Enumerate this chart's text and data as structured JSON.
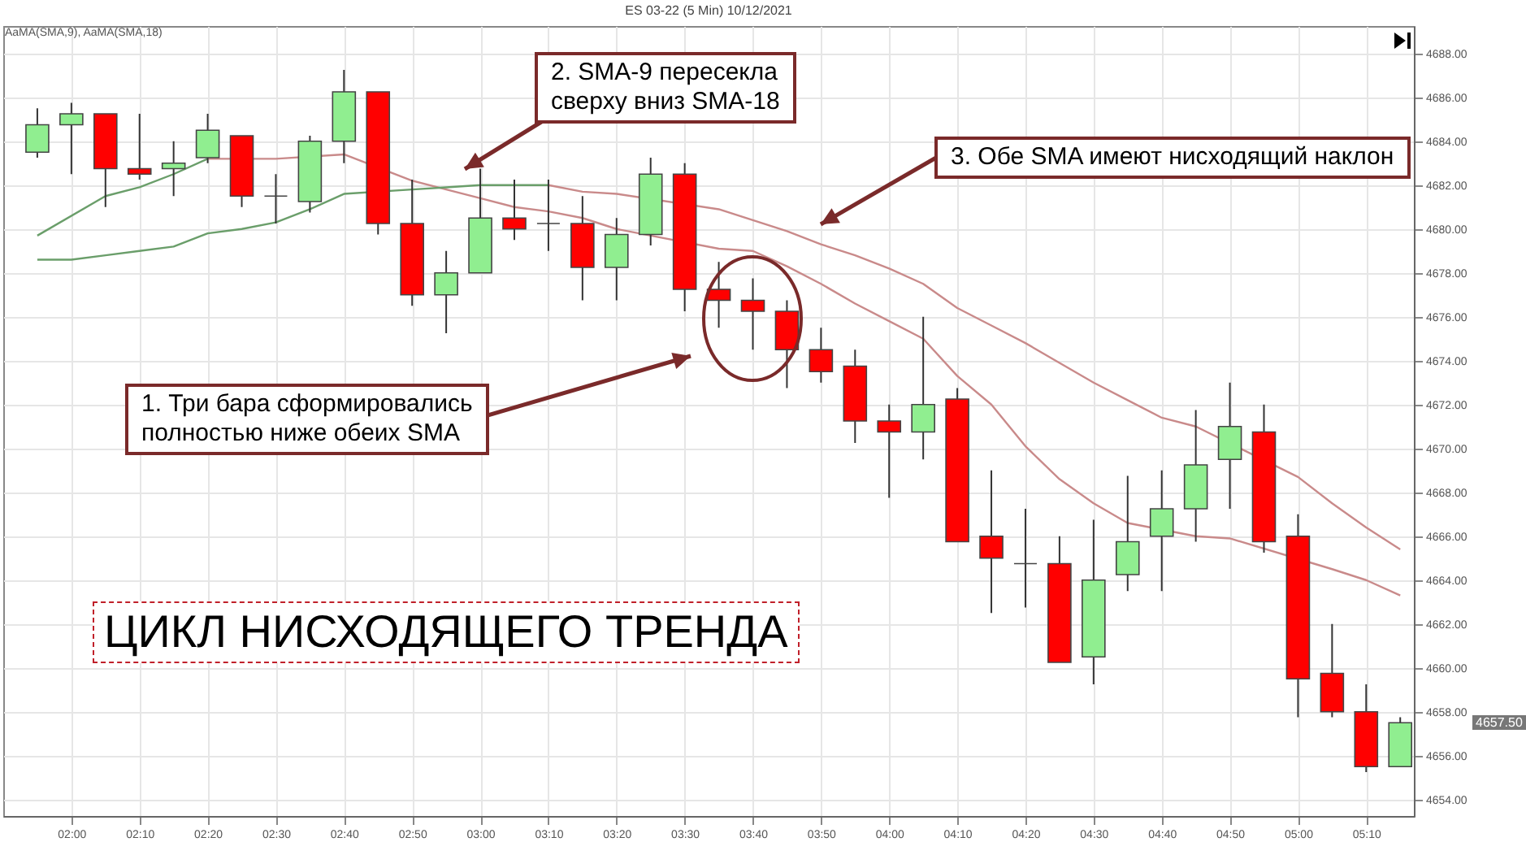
{
  "chart_data": {
    "type": "candlestick",
    "title": "ES 03-22 (5 Min) 10/12/2021",
    "x": [
      "2021-12-10T01:55",
      "2021-12-10T02:00",
      "2021-12-10T02:05",
      "2021-12-10T02:10",
      "2021-12-10T02:15",
      "2021-12-10T02:20",
      "2021-12-10T02:25",
      "2021-12-10T02:30",
      "2021-12-10T02:35",
      "2021-12-10T02:40",
      "2021-12-10T02:45",
      "2021-12-10T02:50",
      "2021-12-10T02:55",
      "2021-12-10T03:00",
      "2021-12-10T03:05",
      "2021-12-10T03:10",
      "2021-12-10T03:15",
      "2021-12-10T03:20",
      "2021-12-10T03:25",
      "2021-12-10T03:30",
      "2021-12-10T03:35",
      "2021-12-10T03:40",
      "2021-12-10T03:45",
      "2021-12-10T03:50",
      "2021-12-10T03:55",
      "2021-12-10T04:00",
      "2021-12-10T04:05",
      "2021-12-10T04:10",
      "2021-12-10T04:15",
      "2021-12-10T04:20",
      "2021-12-10T04:25",
      "2021-12-10T04:30",
      "2021-12-10T04:35",
      "2021-12-10T04:40",
      "2021-12-10T04:45",
      "2021-12-10T04:50",
      "2021-12-10T04:55",
      "2021-12-10T05:00",
      "2021-12-10T05:05",
      "2021-12-10T05:10",
      "2021-12-10T05:15"
    ],
    "ohlc": [
      [
        4683.5,
        4685.5,
        4683.25,
        4684.75
      ],
      [
        4684.75,
        4685.75,
        4682.5,
        4685.25
      ],
      [
        4685.25,
        4685.25,
        4681,
        4682.75
      ],
      [
        4682.75,
        4685.25,
        4682.25,
        4682.5
      ],
      [
        4682.75,
        4684,
        4681.5,
        4683
      ],
      [
        4683.25,
        4685.25,
        4683,
        4684.5
      ],
      [
        4684.25,
        4684.25,
        4681,
        4681.5
      ],
      [
        4681.5,
        4682.5,
        4680.25,
        4681.5
      ],
      [
        4681.25,
        4684.25,
        4680.75,
        4684
      ],
      [
        4684,
        4687.25,
        4683,
        4686.25
      ],
      [
        4686.25,
        4686.25,
        4679.75,
        4680.25
      ],
      [
        4680.25,
        4682.25,
        4676.5,
        4677
      ],
      [
        4677,
        4679,
        4675.25,
        4678
      ],
      [
        4678,
        4682.75,
        4678,
        4680.5
      ],
      [
        4680.5,
        4682.25,
        4679.5,
        4680
      ],
      [
        4680.25,
        4682.25,
        4679,
        4680.25
      ],
      [
        4680.25,
        4681.5,
        4676.75,
        4678.25
      ],
      [
        4678.25,
        4680.5,
        4676.75,
        4679.75
      ],
      [
        4679.75,
        4683.25,
        4679.25,
        4682.5
      ],
      [
        4682.5,
        4683,
        4676.25,
        4677.25
      ],
      [
        4677.25,
        4678.5,
        4675.5,
        4676.75
      ],
      [
        4676.75,
        4677.75,
        4674.5,
        4676.25
      ],
      [
        4676.25,
        4676.75,
        4672.75,
        4674.5
      ],
      [
        4674.5,
        4675.5,
        4673,
        4673.5
      ],
      [
        4673.75,
        4674.5,
        4670.25,
        4671.25
      ],
      [
        4671.25,
        4672,
        4667.75,
        4670.75
      ],
      [
        4670.75,
        4676,
        4669.5,
        4672
      ],
      [
        4672.25,
        4672.75,
        4665.75,
        4665.75
      ],
      [
        4666,
        4669,
        4662.5,
        4665
      ],
      [
        4664.75,
        4667.25,
        4662.75,
        4664.75
      ],
      [
        4664.75,
        4666,
        4660.25,
        4660.25
      ],
      [
        4660.5,
        4666.75,
        4659.25,
        4664
      ],
      [
        4664.25,
        4668.75,
        4663.5,
        4665.75
      ],
      [
        4666,
        4669,
        4663.5,
        4667.25
      ],
      [
        4667.25,
        4671.75,
        4665.75,
        4669.25
      ],
      [
        4669.5,
        4673,
        4667.25,
        4671
      ],
      [
        4670.75,
        4672,
        4665.25,
        4665.75
      ],
      [
        4666,
        4667,
        4657.75,
        4659.5
      ],
      [
        4659.75,
        4662,
        4657.75,
        4658
      ],
      [
        4658,
        4659.25,
        4655.25,
        4655.5
      ],
      [
        4655.5,
        4657.75,
        4655.5,
        4657.5
      ]
    ],
    "colors": [
      "#90ee90",
      "#90ee90",
      "#ff0000",
      "#ff0000",
      "#90ee90",
      "#90ee90",
      "#ff0000",
      "#444444",
      "#90ee90",
      "#90ee90",
      "#ff0000",
      "#ff0000",
      "#90ee90",
      "#90ee90",
      "#ff0000",
      "#444444",
      "#ff0000",
      "#90ee90",
      "#90ee90",
      "#ff0000",
      "#ff0000",
      "#ff0000",
      "#ff0000",
      "#ff0000",
      "#ff0000",
      "#ff0000",
      "#90ee90",
      "#ff0000",
      "#ff0000",
      "#444444",
      "#ff0000",
      "#90ee90",
      "#90ee90",
      "#90ee90",
      "#90ee90",
      "#90ee90",
      "#ff0000",
      "#ff0000",
      "#ff0000",
      "#ff0000",
      "#90ee90"
    ],
    "series": [
      {
        "type": "line",
        "color": "#6a9e6a",
        "x": [
          "2021-12-10T01:55",
          "2021-12-10T02:05",
          "2021-12-10T02:10",
          "2021-12-10T02:15",
          "2021-12-10T02:20"
        ],
        "values": [
          4679.7,
          4681.5,
          4681.9,
          4682.5,
          4683.2
        ]
      },
      {
        "type": "line",
        "color": "#c98a8a",
        "x": [
          "2021-12-10T02:20",
          "2021-12-10T02:25",
          "2021-12-10T02:30",
          "2021-12-10T02:35",
          "2021-12-10T02:40",
          "2021-12-10T02:45",
          "2021-12-10T02:50",
          "2021-12-10T02:55",
          "2021-12-10T03:00",
          "2021-12-10T03:05",
          "2021-12-10T03:10",
          "2021-12-10T03:15",
          "2021-12-10T03:20",
          "2021-12-10T03:25",
          "2021-12-10T03:30",
          "2021-12-10T03:35",
          "2021-12-10T03:40",
          "2021-12-10T03:45",
          "2021-12-10T03:50",
          "2021-12-10T03:55",
          "2021-12-10T04:00",
          "2021-12-10T04:05",
          "2021-12-10T04:10",
          "2021-12-10T04:15",
          "2021-12-10T04:20",
          "2021-12-10T04:25",
          "2021-12-10T04:30",
          "2021-12-10T04:35",
          "2021-12-10T04:40",
          "2021-12-10T04:45",
          "2021-12-10T04:50",
          "2021-12-10T04:55",
          "2021-12-10T05:00",
          "2021-12-10T05:05",
          "2021-12-10T05:10",
          "2021-12-10T05:15"
        ],
        "values": [
          4683.2,
          null,
          4683.2,
          null,
          4683.4,
          null,
          4682.2,
          4681.8,
          4681.4,
          4681,
          4680.8,
          4680.5,
          4680,
          4679.7,
          null,
          4679.1,
          4679,
          4678.3,
          4677.5,
          4676.6,
          4675.8,
          4675,
          4673.3,
          4672,
          4670.1,
          4668.6,
          4667.5,
          4666.6,
          null,
          4666,
          4665.9,
          null,
          null,
          4664.5,
          4664,
          4663.3
        ]
      },
      {
        "type": "line",
        "color": "#6a9e6a",
        "x": [
          "2021-12-10T01:55",
          "2021-12-10T02:00",
          "2021-12-10T02:05",
          "2021-12-10T02:10",
          "2021-12-10T02:15",
          "2021-12-10T02:20",
          "2021-12-10T02:25",
          "2021-12-10T02:30",
          "2021-12-10T02:35",
          "2021-12-10T02:40",
          "2021-12-10T02:45",
          "2021-12-10T02:50",
          "2021-12-10T02:55",
          "2021-12-10T03:00",
          "2021-12-10T03:05",
          "2021-12-10T03:10"
        ],
        "values": [
          4678.6,
          4678.6,
          4678.8,
          4679,
          4679.2,
          4679.8,
          4680,
          4680.3,
          4680.9,
          4681.6,
          null,
          4681.8,
          4681.9,
          4682,
          4682,
          4682
        ]
      },
      {
        "type": "line",
        "color": "#c98a8a",
        "x": [
          "2021-12-10T03:10",
          "2021-12-10T03:15",
          "2021-12-10T03:20",
          "2021-12-10T03:25",
          "2021-12-10T03:30",
          "2021-12-10T03:35",
          "2021-12-10T03:40",
          "2021-12-10T03:45",
          "2021-12-10T03:50",
          "2021-12-10T03:55",
          "2021-12-10T04:00",
          "2021-12-10T04:05",
          "2021-12-10T04:10",
          "2021-12-10T04:15",
          "2021-12-10T04:20",
          "2021-12-10T04:25",
          "2021-12-10T04:30",
          "2021-12-10T04:35",
          "2021-12-10T04:40",
          "2021-12-10T04:45",
          "2021-12-10T04:50",
          "2021-12-10T04:55",
          "2021-12-10T05:00",
          "2021-12-10T05:05",
          "2021-12-10T05:10",
          "2021-12-10T05:15"
        ],
        "values": [
          4682,
          4681.7,
          4681.6,
          null,
          null,
          4680.9,
          4680.4,
          4679.9,
          4679.3,
          4678.8,
          4678.2,
          4677.5,
          4676.4,
          4675.6,
          4674.8,
          4673.9,
          4673,
          4672.2,
          4671.4,
          4671,
          null,
          null,
          4668.7,
          4667.5,
          4666.4,
          4665.4
        ]
      }
    ],
    "xlim": [
      "2021-12-10T01:50",
      "2021-12-10T05:17"
    ],
    "xticks": [
      {
        "value": "2021-12-10T02:00",
        "label": "02:00"
      },
      {
        "value": "2021-12-10T02:10",
        "label": "02:10"
      },
      {
        "value": "2021-12-10T02:20",
        "label": "02:20"
      },
      {
        "value": "2021-12-10T02:30",
        "label": "02:30"
      },
      {
        "value": "2021-12-10T02:40",
        "label": "02:40"
      },
      {
        "value": "2021-12-10T02:50",
        "label": "02:50"
      },
      {
        "value": "2021-12-10T03:00",
        "label": "03:00"
      },
      {
        "value": "2021-12-10T03:10",
        "label": "03:10"
      },
      {
        "value": "2021-12-10T03:20",
        "label": "03:20"
      },
      {
        "value": "2021-12-10T03:30",
        "label": "03:30"
      },
      {
        "value": "2021-12-10T03:40",
        "label": "03:40"
      },
      {
        "value": "2021-12-10T03:50",
        "label": "03:50"
      },
      {
        "value": "2021-12-10T04:00",
        "label": "04:00"
      },
      {
        "value": "2021-12-10T04:10",
        "label": "04:10"
      },
      {
        "value": "2021-12-10T04:20",
        "label": "04:20"
      },
      {
        "value": "2021-12-10T04:30",
        "label": "04:30"
      },
      {
        "value": "2021-12-10T04:40",
        "label": "04:40"
      },
      {
        "value": "2021-12-10T04:50",
        "label": "04:50"
      },
      {
        "value": "2021-12-10T05:00",
        "label": "05:00"
      },
      {
        "value": "2021-12-10T05:10",
        "label": "05:10"
      }
    ],
    "ylim": [
      4653.25,
      4689.25
    ],
    "yticks": [
      {
        "value": 4654,
        "label": "4654.00"
      },
      {
        "value": 4656,
        "label": "4656.00"
      },
      {
        "value": 4658,
        "label": "4658.00"
      },
      {
        "value": 4660,
        "label": "4660.00"
      },
      {
        "value": 4662,
        "label": "4662.00"
      },
      {
        "value": 4664,
        "label": "4664.00"
      },
      {
        "value": 4666,
        "label": "4666.00"
      },
      {
        "value": 4668,
        "label": "4668.00"
      },
      {
        "value": 4670,
        "label": "4670.00"
      },
      {
        "value": 4672,
        "label": "4672.00"
      },
      {
        "value": 4674,
        "label": "4674.00"
      },
      {
        "value": 4676,
        "label": "4676.00"
      },
      {
        "value": 4678,
        "label": "4678.00"
      },
      {
        "value": 4680,
        "label": "4680.00"
      },
      {
        "value": 4682,
        "label": "4682.00"
      },
      {
        "value": 4684,
        "label": "4684.00"
      },
      {
        "value": 4686,
        "label": "4686.00"
      },
      {
        "value": 4688,
        "label": "4688.00"
      }
    ],
    "grid": true,
    "annotations": [
      "AaMA(SMA,9), AaMA(SMA,18)",
      "2. SMA-9 пересекла\nсверху вниз SMA-18",
      "3. Обе SMA имеют нисходящий наклон",
      "1. Три бара сформировались\nполностью ниже обеих SMA",
      "ЦИКЛ НИСХОДЯЩЕГО ТРЕНДА",
      "4657.50"
    ]
  }
}
